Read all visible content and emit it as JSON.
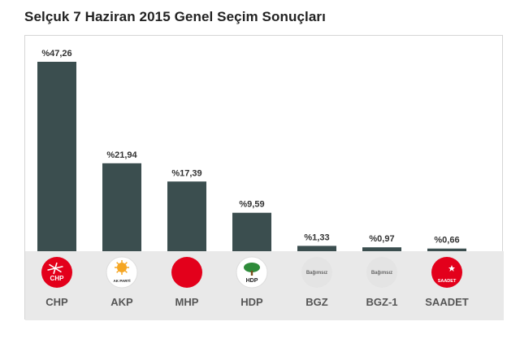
{
  "title": "Selçuk 7 Haziran 2015 Genel Seçim Sonuçları",
  "colors": {
    "bar": "#3b4e4f",
    "strip": "#e9e9e9",
    "chp": "#e3001b",
    "akp_yellow": "#f5a623",
    "mhp": "#e3001b",
    "hdp_green": "#2e8b3a",
    "saadet": "#e3001b"
  },
  "chart_data": {
    "type": "bar",
    "categories": [
      "CHP",
      "AKP",
      "MHP",
      "HDP",
      "BGZ",
      "BGZ-1",
      "SAADET"
    ],
    "values": [
      47.26,
      21.94,
      17.39,
      9.59,
      1.33,
      0.97,
      0.66
    ],
    "value_labels": [
      "%47,26",
      "%21,94",
      "%17,39",
      "%9,59",
      "%1,33",
      "%0,97",
      "%0,66"
    ],
    "logos": [
      {
        "icon": "chp-logo-icon",
        "text": "CHP"
      },
      {
        "icon": "akp-logo-icon",
        "text": "AK PARTİ"
      },
      {
        "icon": "mhp-logo-icon",
        "text": ""
      },
      {
        "icon": "hdp-logo-icon",
        "text": "HDP"
      },
      {
        "icon": "independent-logo-icon",
        "text": "Bağımsız"
      },
      {
        "icon": "independent-logo-icon",
        "text": "Bağımsız"
      },
      {
        "icon": "saadet-logo-icon",
        "text": "SAADET"
      }
    ],
    "ylim": [
      0,
      50
    ],
    "grid": false,
    "legend": "none"
  }
}
